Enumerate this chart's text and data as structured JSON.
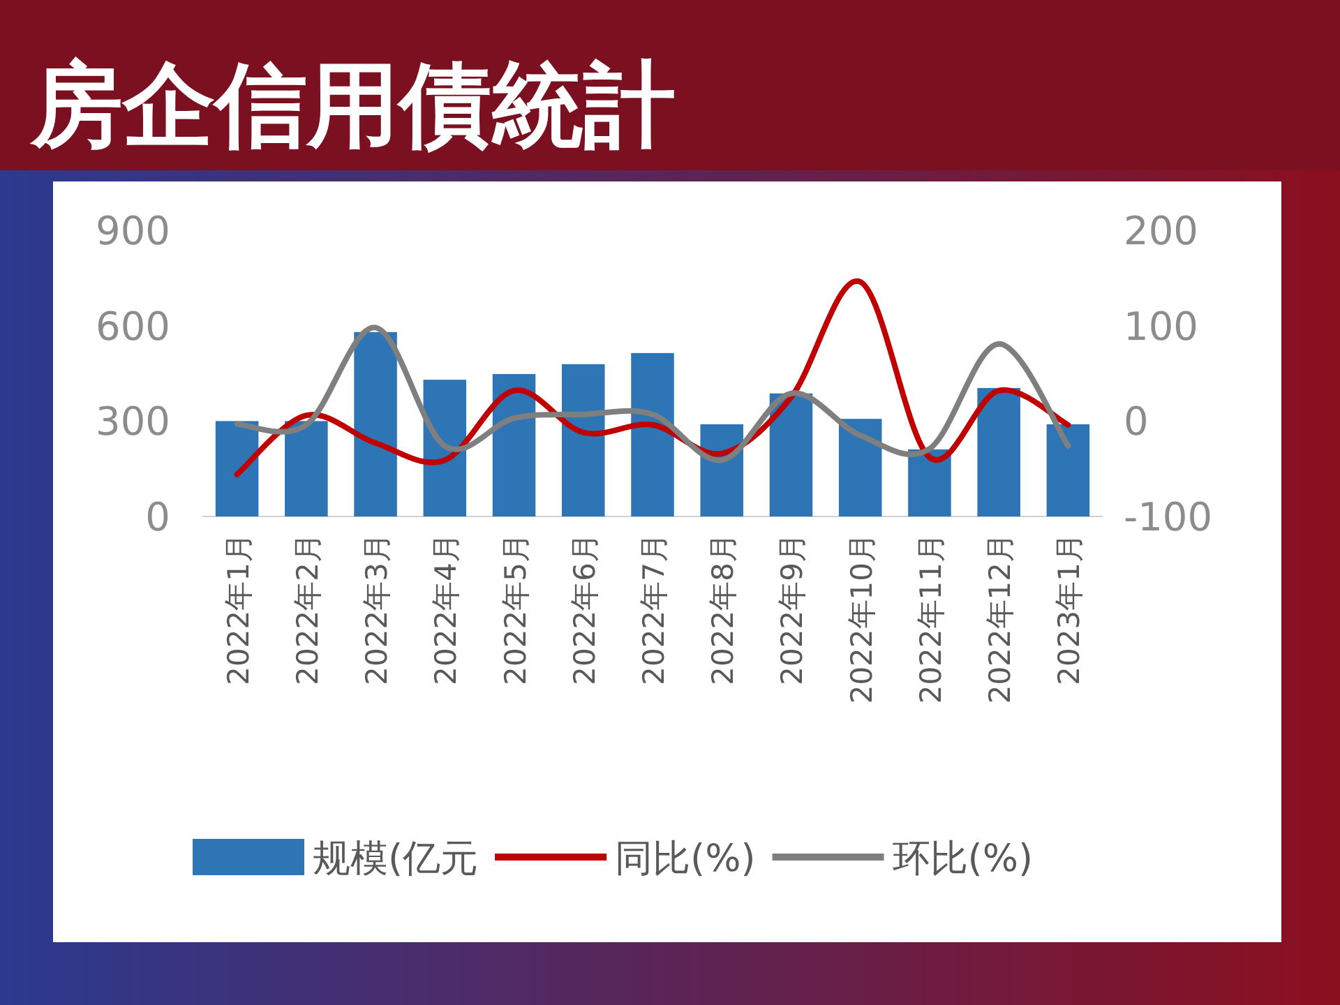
{
  "chart_data": {
    "type": "bar",
    "title": "房企信用債統計",
    "categories": [
      "2022年1月",
      "2022年2月",
      "2022年3月",
      "2022年4月",
      "2022年5月",
      "2022年6月",
      "2022年7月",
      "2022年8月",
      "2022年9月",
      "2022年10月",
      "2022年11月",
      "2022年12月",
      "2023年1月"
    ],
    "series": [
      {
        "name": "规模(亿元",
        "color": "#2e75b6",
        "values": [
          300,
          300,
          580,
          430,
          448,
          479,
          514,
          290,
          387,
          307,
          211,
          404,
          290
        ]
      },
      {
        "name": "同比(%)",
        "type": "line",
        "axis": "y2",
        "color": "#c00000",
        "values": [
          -56,
          6,
          -23,
          -41,
          32,
          -12,
          -4,
          -34,
          25,
          146,
          -38,
          32,
          -4
        ]
      },
      {
        "name": "环比(%)",
        "type": "line",
        "axis": "y2",
        "color": "#7f7f7f",
        "values": [
          -3,
          -4,
          98,
          -26,
          3,
          7,
          7,
          -41,
          29,
          -15,
          -29,
          81,
          -26
        ]
      }
    ],
    "ylim": [
      0,
      900
    ],
    "yticks": [
      0,
      300,
      600,
      900
    ],
    "y2lim": [
      -100,
      200
    ],
    "y2ticks": [
      -100,
      0,
      100,
      200
    ],
    "legend": "bottom"
  }
}
